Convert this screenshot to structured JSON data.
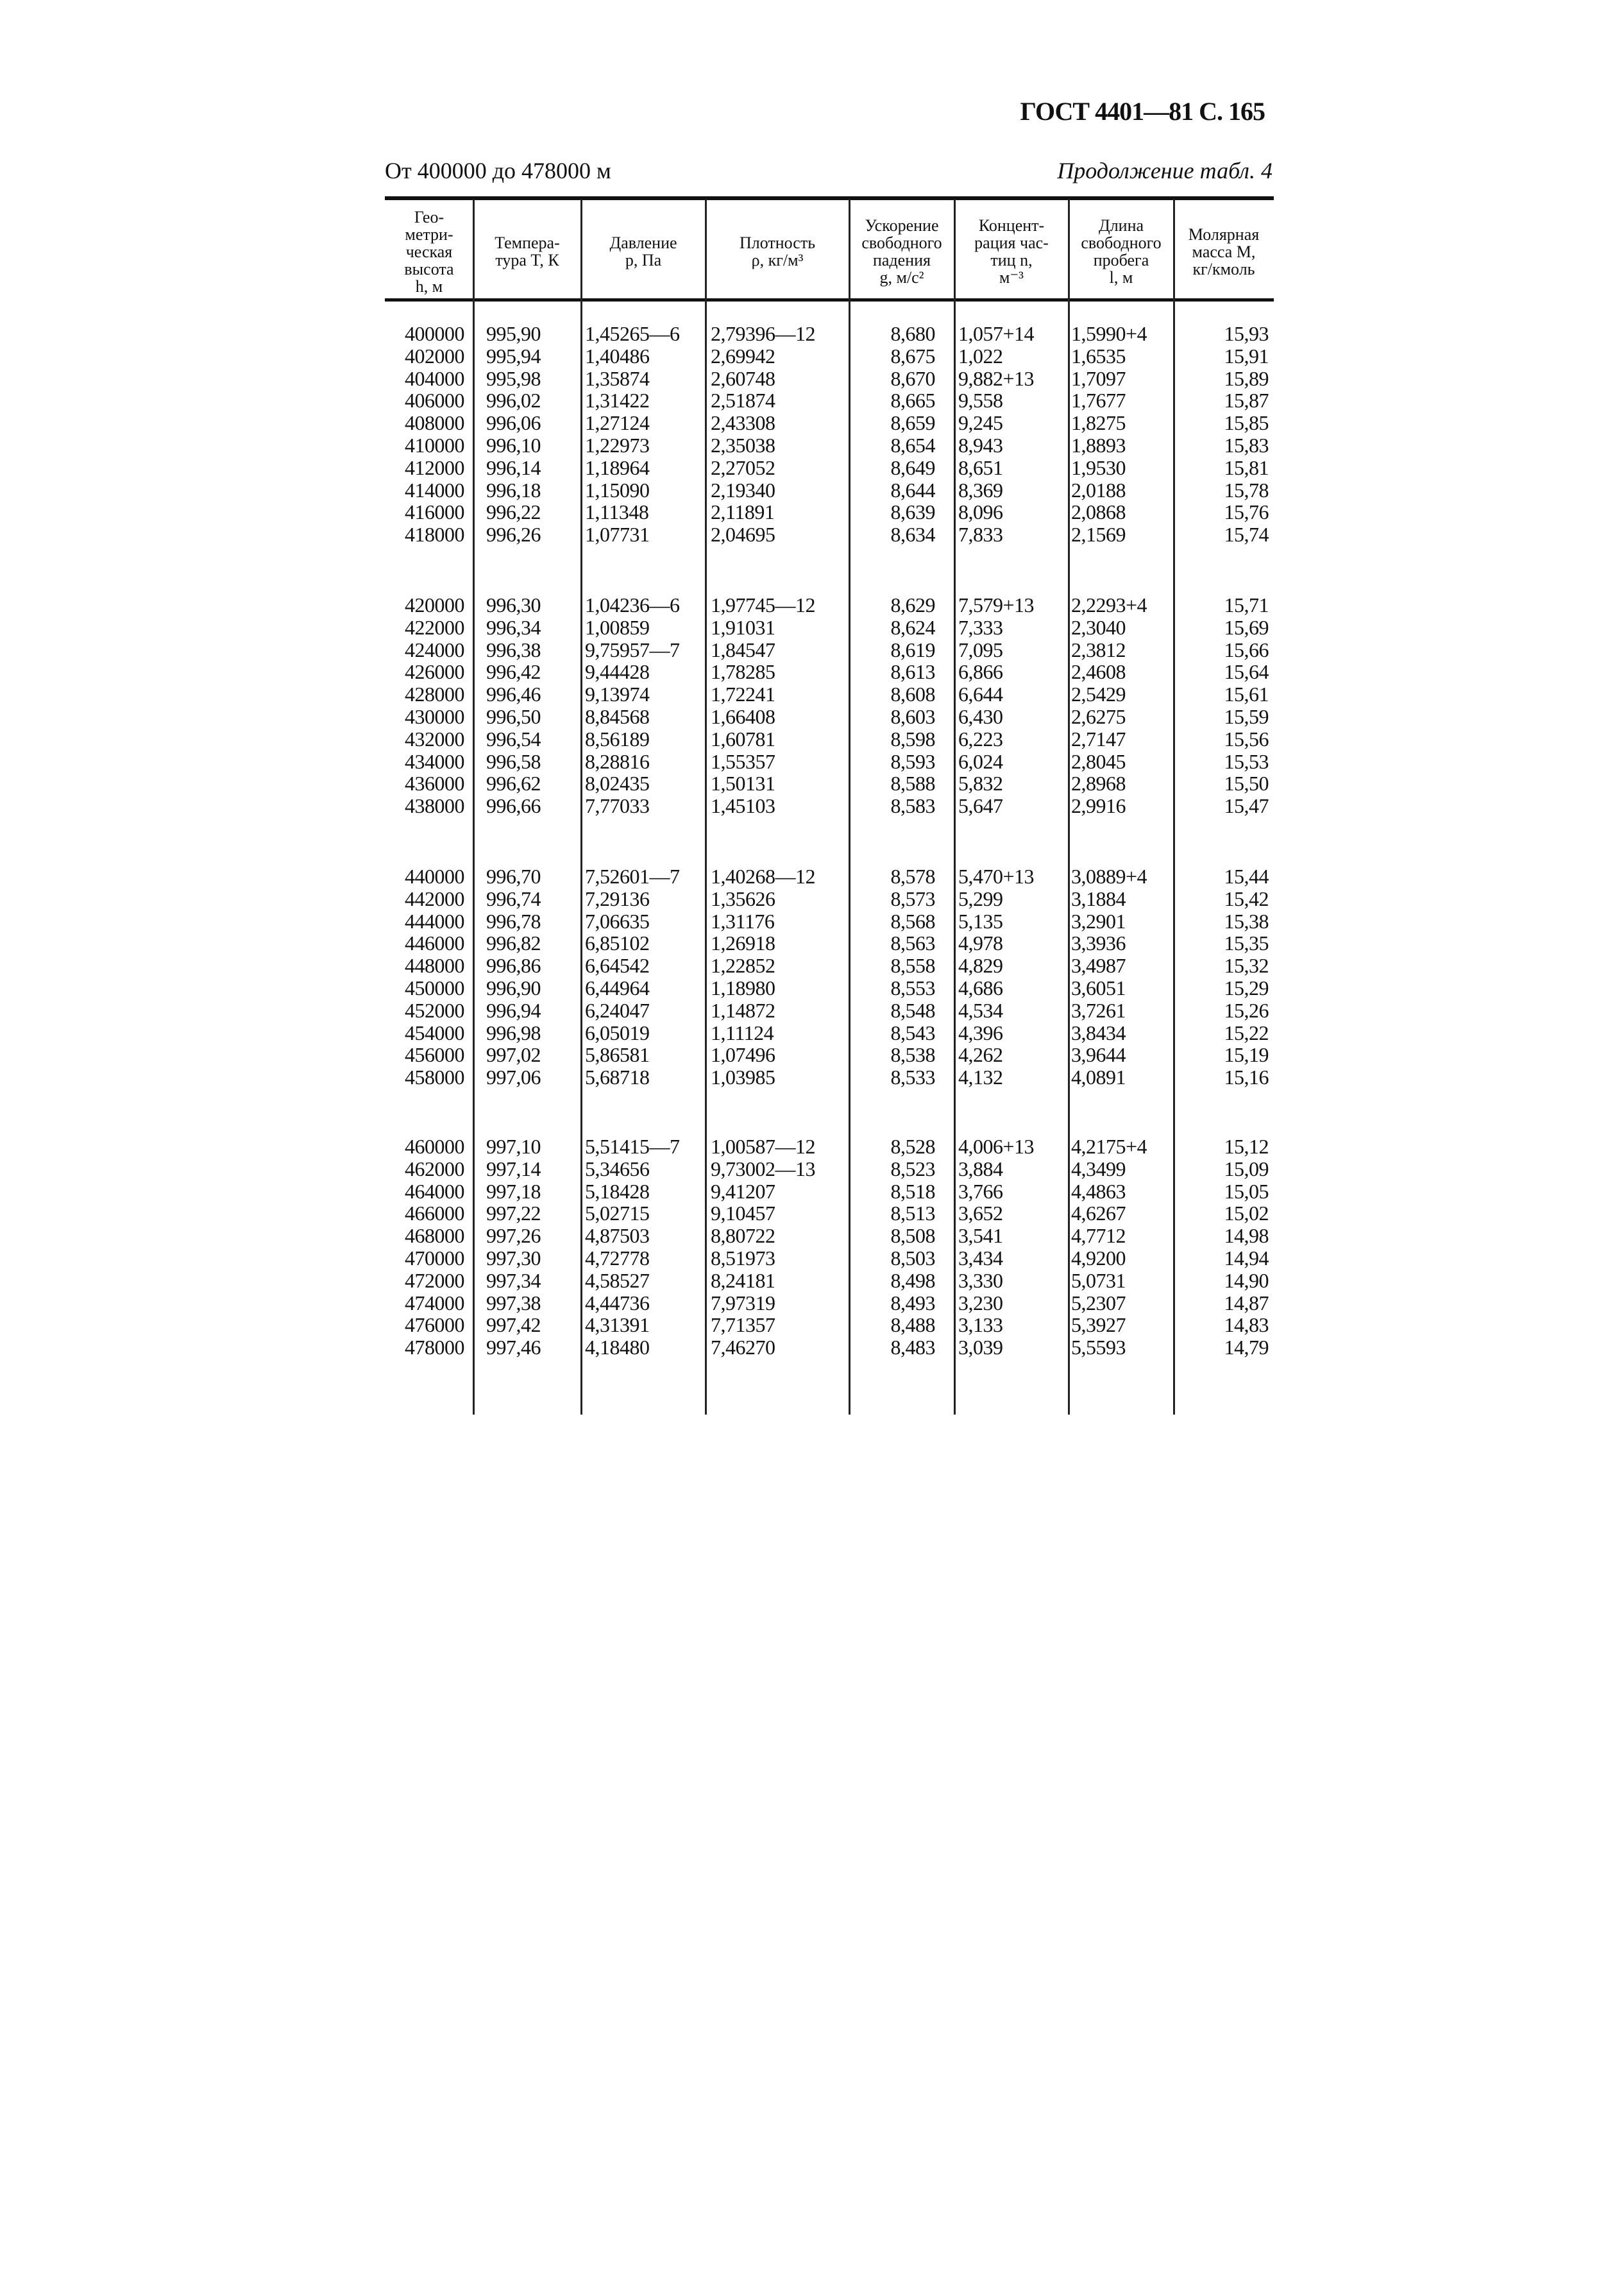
{
  "page_header": "ГОСТ 4401—81 С. 165",
  "range_caption": "От 400000 до 478000 м",
  "continuation_caption": "Продолжение табл. 4",
  "columns": [
    "Гео-\nметри-\nческая\nвысота\nh, м",
    "Темпера-\nтура T, К",
    "Давление\np, Па",
    "Плотность\nρ, кг/м³",
    "Ускорение\nсвободного\nпадения\ng, м/с²",
    "Концент-\nрация час-\nтиц n,\nм⁻³",
    "Длина\nсвободного\nпробега\nl, м",
    "Молярная\nмасса M,\nкг/кмоль"
  ],
  "blocks": [
    [
      [
        "400000",
        "995,90",
        "1,45265—6",
        "2,79396—12",
        "8,680",
        "1,057+14",
        "1,5990+4",
        "15,93"
      ],
      [
        "402000",
        "995,94",
        "1,40486",
        "2,69942",
        "8,675",
        "1,022",
        "1,6535",
        "15,91"
      ],
      [
        "404000",
        "995,98",
        "1,35874",
        "2,60748",
        "8,670",
        "9,882+13",
        "1,7097",
        "15,89"
      ],
      [
        "406000",
        "996,02",
        "1,31422",
        "2,51874",
        "8,665",
        "9,558",
        "1,7677",
        "15,87"
      ],
      [
        "408000",
        "996,06",
        "1,27124",
        "2,43308",
        "8,659",
        "9,245",
        "1,8275",
        "15,85"
      ],
      [
        "410000",
        "996,10",
        "1,22973",
        "2,35038",
        "8,654",
        "8,943",
        "1,8893",
        "15,83"
      ],
      [
        "412000",
        "996,14",
        "1,18964",
        "2,27052",
        "8,649",
        "8,651",
        "1,9530",
        "15,81"
      ],
      [
        "414000",
        "996,18",
        "1,15090",
        "2,19340",
        "8,644",
        "8,369",
        "2,0188",
        "15,78"
      ],
      [
        "416000",
        "996,22",
        "1,11348",
        "2,11891",
        "8,639",
        "8,096",
        "2,0868",
        "15,76"
      ],
      [
        "418000",
        "996,26",
        "1,07731",
        "2,04695",
        "8,634",
        "7,833",
        "2,1569",
        "15,74"
      ]
    ],
    [
      [
        "420000",
        "996,30",
        "1,04236—6",
        "1,97745—12",
        "8,629",
        "7,579+13",
        "2,2293+4",
        "15,71"
      ],
      [
        "422000",
        "996,34",
        "1,00859",
        "1,91031",
        "8,624",
        "7,333",
        "2,3040",
        "15,69"
      ],
      [
        "424000",
        "996,38",
        "9,75957—7",
        "1,84547",
        "8,619",
        "7,095",
        "2,3812",
        "15,66"
      ],
      [
        "426000",
        "996,42",
        "9,44428",
        "1,78285",
        "8,613",
        "6,866",
        "2,4608",
        "15,64"
      ],
      [
        "428000",
        "996,46",
        "9,13974",
        "1,72241",
        "8,608",
        "6,644",
        "2,5429",
        "15,61"
      ],
      [
        "430000",
        "996,50",
        "8,84568",
        "1,66408",
        "8,603",
        "6,430",
        "2,6275",
        "15,59"
      ],
      [
        "432000",
        "996,54",
        "8,56189",
        "1,60781",
        "8,598",
        "6,223",
        "2,7147",
        "15,56"
      ],
      [
        "434000",
        "996,58",
        "8,28816",
        "1,55357",
        "8,593",
        "6,024",
        "2,8045",
        "15,53"
      ],
      [
        "436000",
        "996,62",
        "8,02435",
        "1,50131",
        "8,588",
        "5,832",
        "2,8968",
        "15,50"
      ],
      [
        "438000",
        "996,66",
        "7,77033",
        "1,45103",
        "8,583",
        "5,647",
        "2,9916",
        "15,47"
      ]
    ],
    [
      [
        "440000",
        "996,70",
        "7,52601—7",
        "1,40268—12",
        "8,578",
        "5,470+13",
        "3,0889+4",
        "15,44"
      ],
      [
        "442000",
        "996,74",
        "7,29136",
        "1,35626",
        "8,573",
        "5,299",
        "3,1884",
        "15,42"
      ],
      [
        "444000",
        "996,78",
        "7,06635",
        "1,31176",
        "8,568",
        "5,135",
        "3,2901",
        "15,38"
      ],
      [
        "446000",
        "996,82",
        "6,85102",
        "1,26918",
        "8,563",
        "4,978",
        "3,3936",
        "15,35"
      ],
      [
        "448000",
        "996,86",
        "6,64542",
        "1,22852",
        "8,558",
        "4,829",
        "3,4987",
        "15,32"
      ],
      [
        "450000",
        "996,90",
        "6,44964",
        "1,18980",
        "8,553",
        "4,686",
        "3,6051",
        "15,29"
      ],
      [
        "452000",
        "996,94",
        "6,24047",
        "1,14872",
        "8,548",
        "4,534",
        "3,7261",
        "15,26"
      ],
      [
        "454000",
        "996,98",
        "6,05019",
        "1,11124",
        "8,543",
        "4,396",
        "3,8434",
        "15,22"
      ],
      [
        "456000",
        "997,02",
        "5,86581",
        "1,07496",
        "8,538",
        "4,262",
        "3,9644",
        "15,19"
      ],
      [
        "458000",
        "997,06",
        "5,68718",
        "1,03985",
        "8,533",
        "4,132",
        "4,0891",
        "15,16"
      ]
    ],
    [
      [
        "460000",
        "997,10",
        "5,51415—7",
        "1,00587—12",
        "8,528",
        "4,006+13",
        "4,2175+4",
        "15,12"
      ],
      [
        "462000",
        "997,14",
        "5,34656",
        "9,73002—13",
        "8,523",
        "3,884",
        "4,3499",
        "15,09"
      ],
      [
        "464000",
        "997,18",
        "5,18428",
        "9,41207",
        "8,518",
        "3,766",
        "4,4863",
        "15,05"
      ],
      [
        "466000",
        "997,22",
        "5,02715",
        "9,10457",
        "8,513",
        "3,652",
        "4,6267",
        "15,02"
      ],
      [
        "468000",
        "997,26",
        "4,87503",
        "8,80722",
        "8,508",
        "3,541",
        "4,7712",
        "14,98"
      ],
      [
        "470000",
        "997,30",
        "4,72778",
        "8,51973",
        "8,503",
        "3,434",
        "4,9200",
        "14,94"
      ],
      [
        "472000",
        "997,34",
        "4,58527",
        "8,24181",
        "8,498",
        "3,330",
        "5,0731",
        "14,90"
      ],
      [
        "474000",
        "997,38",
        "4,44736",
        "7,97319",
        "8,493",
        "3,230",
        "5,2307",
        "14,87"
      ],
      [
        "476000",
        "997,42",
        "4,31391",
        "7,71357",
        "8,488",
        "3,133",
        "5,3927",
        "14,83"
      ],
      [
        "478000",
        "997,46",
        "4,18480",
        "7,46270",
        "8,483",
        "3,039",
        "5,5593",
        "14,79"
      ]
    ]
  ]
}
